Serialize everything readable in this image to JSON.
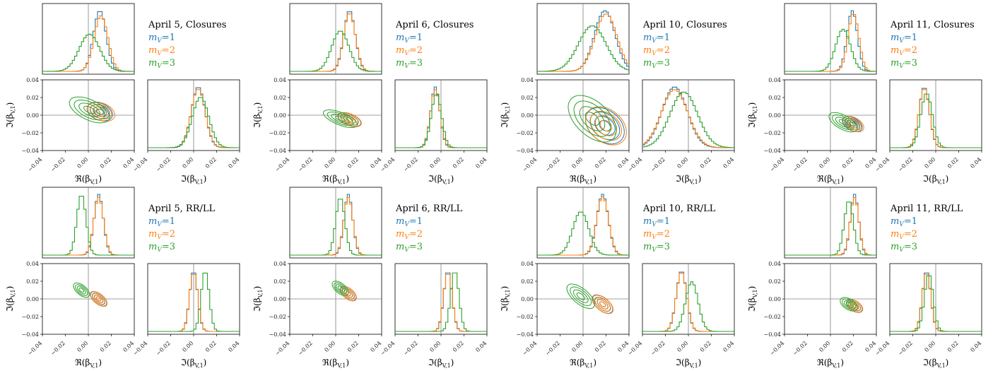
{
  "figure": {
    "colors": {
      "m1": "#1f77b4",
      "m2": "#ff7f0e",
      "m3": "#2ca02c",
      "frame": "#000000",
      "refline": "#808080"
    }
  },
  "chart_data": [
    {
      "type": "corner",
      "title": "April 5, Closures",
      "legend": [
        "m_V=1",
        "m_V=2",
        "m_V=3"
      ],
      "xlabel_2d": "ℜ(β_{V,1})",
      "ylabel_2d": "ℑ(β_{V,1})",
      "xlabel_1d": "ℑ(β_{V,1})",
      "xlim": [
        -0.04,
        0.04
      ],
      "ylim": [
        -0.04,
        0.04
      ],
      "ticks": [
        -0.04,
        -0.02,
        0.0,
        0.02,
        0.04
      ],
      "tick_labels": [
        "−0.04",
        "−0.02",
        "0.00",
        "0.02",
        "0.04"
      ],
      "reference": [
        0,
        0
      ],
      "series": [
        {
          "name": "m_V=1",
          "color": "#1f77b4",
          "re_mean": 0.01,
          "re_sd": 0.0055,
          "im_mean": 0.004,
          "im_sd": 0.006,
          "corr": -0.3
        },
        {
          "name": "m_V=2",
          "color": "#ff7f0e",
          "re_mean": 0.011,
          "re_sd": 0.006,
          "im_mean": 0.004,
          "im_sd": 0.0062,
          "corr": -0.3
        },
        {
          "name": "m_V=3",
          "color": "#2ca02c",
          "re_mean": 0.001,
          "re_sd": 0.009,
          "im_mean": 0.006,
          "im_sd": 0.0072,
          "corr": -0.35
        }
      ]
    },
    {
      "type": "corner",
      "title": "April 6, Closures",
      "legend": [
        "m_V=1",
        "m_V=2",
        "m_V=3"
      ],
      "xlabel_2d": "ℜ(β_{V,1})",
      "ylabel_2d": "ℑ(β_{V,1})",
      "xlabel_1d": "ℑ(β_{V,1})",
      "xlim": [
        -0.04,
        0.04
      ],
      "ylim": [
        -0.04,
        0.04
      ],
      "ticks": [
        -0.04,
        -0.02,
        0.0,
        0.02,
        0.04
      ],
      "tick_labels": [
        "−0.04",
        "−0.02",
        "0.00",
        "0.02",
        "0.04"
      ],
      "reference": [
        0,
        0
      ],
      "series": [
        {
          "name": "m_V=1",
          "color": "#1f77b4",
          "re_mean": 0.012,
          "re_sd": 0.005,
          "im_mean": -0.005,
          "im_sd": 0.004,
          "corr": -0.3
        },
        {
          "name": "m_V=2",
          "color": "#ff7f0e",
          "re_mean": 0.012,
          "re_sd": 0.0052,
          "im_mean": -0.005,
          "im_sd": 0.0042,
          "corr": -0.3
        },
        {
          "name": "m_V=3",
          "color": "#2ca02c",
          "re_mean": 0.004,
          "re_sd": 0.0075,
          "im_mean": -0.004,
          "im_sd": 0.0045,
          "corr": -0.3
        }
      ]
    },
    {
      "type": "corner",
      "title": "April 10, Closures",
      "legend": [
        "m_V=1",
        "m_V=2",
        "m_V=3"
      ],
      "xlabel_2d": "ℜ(β_{V,1})",
      "ylabel_2d": "ℑ(β_{V,1})",
      "xlabel_1d": "ℑ(β_{V,1})",
      "xlim": [
        -0.04,
        0.04
      ],
      "ylim": [
        -0.04,
        0.04
      ],
      "ticks": [
        -0.04,
        -0.02,
        0.0,
        0.02,
        0.04
      ],
      "tick_labels": [
        "−0.04",
        "−0.02",
        "0.00",
        "0.02",
        "0.04"
      ],
      "reference": [
        0,
        0
      ],
      "series": [
        {
          "name": "m_V=1",
          "color": "#1f77b4",
          "re_mean": 0.019,
          "re_sd": 0.009,
          "im_mean": -0.012,
          "im_sd": 0.011,
          "corr": -0.55
        },
        {
          "name": "m_V=2",
          "color": "#ff7f0e",
          "re_mean": 0.02,
          "re_sd": 0.0095,
          "im_mean": -0.012,
          "im_sd": 0.0115,
          "corr": -0.55
        },
        {
          "name": "m_V=3",
          "color": "#2ca02c",
          "re_mean": 0.008,
          "re_sd": 0.012,
          "im_mean": -0.004,
          "im_sd": 0.012,
          "corr": -0.6
        }
      ]
    },
    {
      "type": "corner",
      "title": "April 11, Closures",
      "legend": [
        "m_V=1",
        "m_V=2",
        "m_V=3"
      ],
      "xlabel_2d": "ℜ(β_{V,1})",
      "ylabel_2d": "ℑ(β_{V,1})",
      "xlabel_1d": "ℑ(β_{V,1})",
      "xlim": [
        -0.04,
        0.04
      ],
      "ylim": [
        -0.04,
        0.04
      ],
      "ticks": [
        -0.04,
        -0.02,
        0.0,
        0.02,
        0.04
      ],
      "tick_labels": [
        "−0.04",
        "−0.02",
        "0.00",
        "0.02",
        "0.04"
      ],
      "reference": [
        0,
        0
      ],
      "series": [
        {
          "name": "m_V=1",
          "color": "#1f77b4",
          "re_mean": 0.019,
          "re_sd": 0.0045,
          "im_mean": -0.01,
          "im_sd": 0.0045,
          "corr": -0.4
        },
        {
          "name": "m_V=2",
          "color": "#ff7f0e",
          "re_mean": 0.02,
          "re_sd": 0.0047,
          "im_mean": -0.01,
          "im_sd": 0.0046,
          "corr": -0.4
        },
        {
          "name": "m_V=3",
          "color": "#2ca02c",
          "re_mean": 0.011,
          "re_sd": 0.0065,
          "im_mean": -0.008,
          "im_sd": 0.005,
          "corr": -0.4
        }
      ]
    },
    {
      "type": "corner",
      "title": "April 5, RR/LL",
      "legend": [
        "m_V=1",
        "m_V=2",
        "m_V=3"
      ],
      "xlabel_2d": "ℜ(β_{V,1})",
      "ylabel_2d": "ℑ(β_{V,1})",
      "xlabel_1d": "ℑ(β_{V,1})",
      "xlim": [
        -0.04,
        0.04
      ],
      "ylim": [
        -0.04,
        0.04
      ],
      "ticks": [
        -0.04,
        -0.02,
        0.0,
        0.02,
        0.04
      ],
      "tick_labels": [
        "−0.04",
        "−0.02",
        "0.00",
        "0.02",
        "0.04"
      ],
      "reference": [
        0,
        0
      ],
      "series": [
        {
          "name": "m_V=1",
          "color": "#1f77b4",
          "re_mean": 0.009,
          "re_sd": 0.004,
          "im_mean": 0.0,
          "im_sd": 0.0035,
          "corr": -0.55
        },
        {
          "name": "m_V=2",
          "color": "#ff7f0e",
          "re_mean": 0.009,
          "re_sd": 0.0042,
          "im_mean": 0.0,
          "im_sd": 0.0036,
          "corr": -0.55
        },
        {
          "name": "m_V=3",
          "color": "#2ca02c",
          "re_mean": -0.006,
          "re_sd": 0.004,
          "im_mean": 0.01,
          "im_sd": 0.0035,
          "corr": -0.55
        }
      ]
    },
    {
      "type": "corner",
      "title": "April 6, RR/LL",
      "legend": [
        "m_V=1",
        "m_V=2",
        "m_V=3"
      ],
      "xlabel_2d": "ℜ(β_{V,1})",
      "ylabel_2d": "ℑ(β_{V,1})",
      "xlabel_1d": "ℑ(β_{V,1})",
      "xlim": [
        -0.04,
        0.04
      ],
      "ylim": [
        -0.04,
        0.04
      ],
      "ticks": [
        -0.04,
        -0.02,
        0.0,
        0.02,
        0.04
      ],
      "tick_labels": [
        "−0.04",
        "−0.02",
        "0.00",
        "0.02",
        "0.04"
      ],
      "reference": [
        0,
        0
      ],
      "series": [
        {
          "name": "m_V=1",
          "color": "#1f77b4",
          "re_mean": 0.011,
          "re_sd": 0.0038,
          "im_mean": 0.006,
          "im_sd": 0.0036,
          "corr": -0.55
        },
        {
          "name": "m_V=2",
          "color": "#ff7f0e",
          "re_mean": 0.011,
          "re_sd": 0.004,
          "im_mean": 0.006,
          "im_sd": 0.0037,
          "corr": -0.55
        },
        {
          "name": "m_V=3",
          "color": "#2ca02c",
          "re_mean": 0.004,
          "re_sd": 0.004,
          "im_mean": 0.012,
          "im_sd": 0.0036,
          "corr": -0.55
        }
      ]
    },
    {
      "type": "corner",
      "title": "April 10, RR/LL",
      "legend": [
        "m_V=1",
        "m_V=2",
        "m_V=3"
      ],
      "xlabel_2d": "ℜ(β_{V,1})",
      "ylabel_2d": "ℑ(β_{V,1})",
      "xlabel_1d": "ℑ(β_{V,1})",
      "xlim": [
        -0.04,
        0.04
      ],
      "ylim": [
        -0.04,
        0.04
      ],
      "ticks": [
        -0.04,
        -0.02,
        0.0,
        0.02,
        0.04
      ],
      "tick_labels": [
        "−0.04",
        "−0.02",
        "0.00",
        "0.02",
        "0.04"
      ],
      "reference": [
        0,
        0
      ],
      "series": [
        {
          "name": "m_V=1",
          "color": "#1f77b4",
          "re_mean": 0.017,
          "re_sd": 0.005,
          "im_mean": -0.006,
          "im_sd": 0.0045,
          "corr": -0.55
        },
        {
          "name": "m_V=2",
          "color": "#ff7f0e",
          "re_mean": 0.017,
          "re_sd": 0.0052,
          "im_mean": -0.006,
          "im_sd": 0.0046,
          "corr": -0.55
        },
        {
          "name": "m_V=3",
          "color": "#2ca02c",
          "re_mean": -0.002,
          "re_sd": 0.007,
          "im_mean": 0.003,
          "im_sd": 0.0055,
          "corr": -0.55
        }
      ]
    },
    {
      "type": "corner",
      "title": "April 11, RR/LL",
      "legend": [
        "m_V=1",
        "m_V=2",
        "m_V=3"
      ],
      "xlabel_2d": "ℜ(β_{V,1})",
      "ylabel_2d": "ℑ(β_{V,1})",
      "xlabel_1d": "ℑ(β_{V,1})",
      "xlim": [
        -0.04,
        0.04
      ],
      "ylim": [
        -0.04,
        0.04
      ],
      "ticks": [
        -0.04,
        -0.02,
        0.0,
        0.02,
        0.04
      ],
      "tick_labels": [
        "−0.04",
        "−0.02",
        "0.00",
        "0.02",
        "0.04"
      ],
      "reference": [
        0,
        0
      ],
      "series": [
        {
          "name": "m_V=1",
          "color": "#1f77b4",
          "re_mean": 0.021,
          "re_sd": 0.0036,
          "im_mean": -0.008,
          "im_sd": 0.0036,
          "corr": -0.45
        },
        {
          "name": "m_V=2",
          "color": "#ff7f0e",
          "re_mean": 0.021,
          "re_sd": 0.0038,
          "im_mean": -0.008,
          "im_sd": 0.0037,
          "corr": -0.45
        },
        {
          "name": "m_V=3",
          "color": "#2ca02c",
          "re_mean": 0.016,
          "re_sd": 0.004,
          "im_mean": -0.006,
          "im_sd": 0.0038,
          "corr": -0.45
        }
      ]
    }
  ]
}
